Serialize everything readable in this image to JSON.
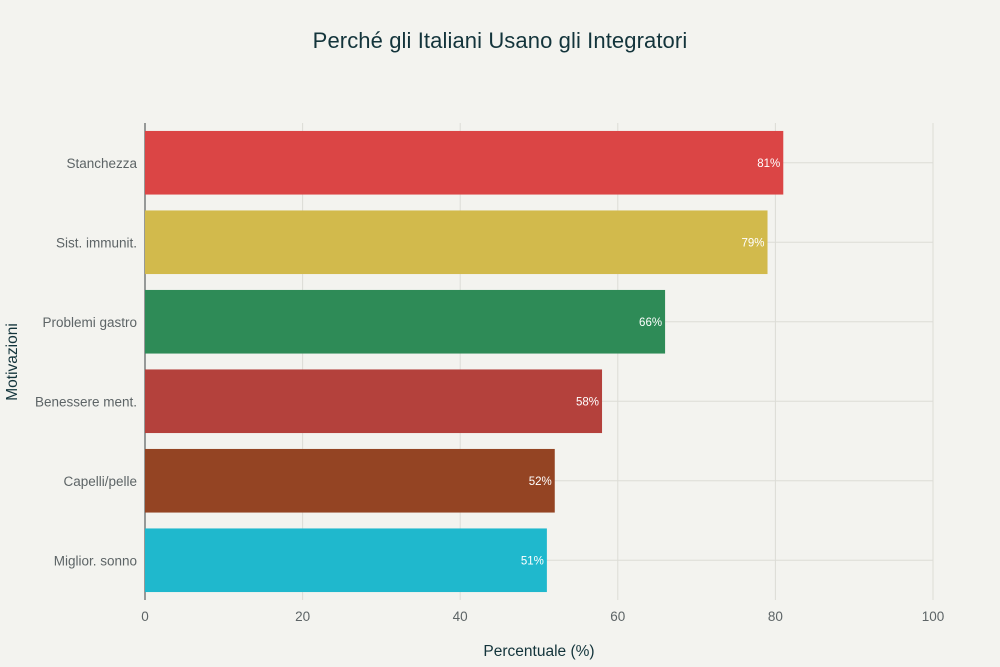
{
  "chart_data": {
    "type": "bar",
    "orientation": "horizontal",
    "title": "Perché gli Italiani Usano gli Integratori",
    "xlabel": "Percentuale (%)",
    "ylabel": "Motivazioni",
    "xlim": [
      0,
      100
    ],
    "xticks": [
      0,
      20,
      40,
      60,
      80,
      100
    ],
    "grid": true,
    "categories": [
      "Stanchezza",
      "Sist. immunit.",
      "Problemi gastro",
      "Benessere ment.",
      "Capelli/pelle",
      "Miglior. sonno"
    ],
    "values": [
      81,
      79,
      66,
      58,
      52,
      51
    ],
    "data_labels": [
      "81%",
      "79%",
      "66%",
      "58%",
      "52%",
      "51%"
    ],
    "colors": [
      "#db4545",
      "#d2ba4c",
      "#2e8b57",
      "#b4413c",
      "#944423",
      "#1fb8cd"
    ]
  }
}
